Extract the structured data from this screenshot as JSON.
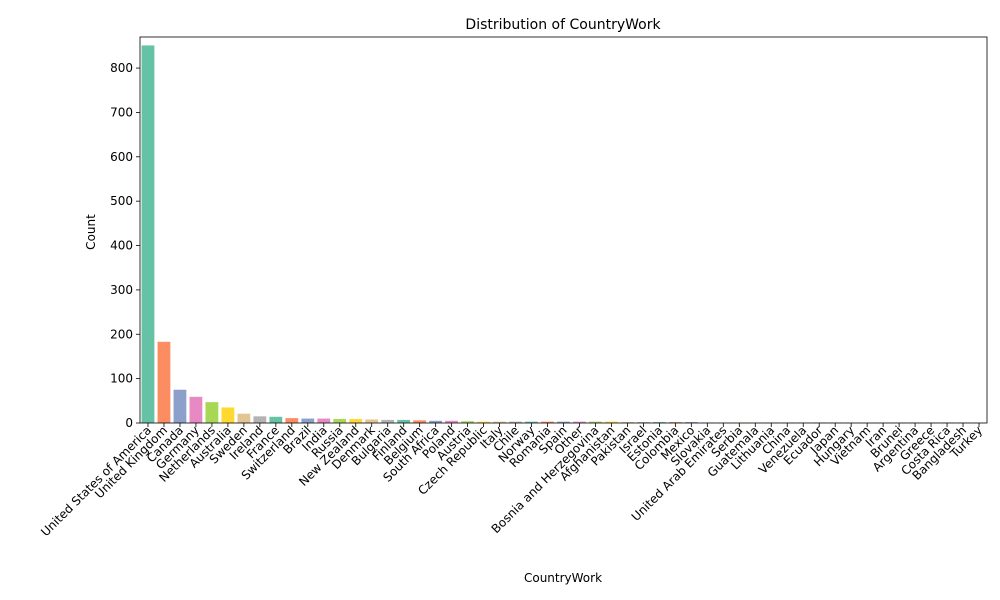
{
  "chart_data": {
    "type": "bar",
    "title": "Distribution of CountryWork",
    "xlabel": "CountryWork",
    "ylabel": "Count",
    "ylim": [
      0,
      870
    ],
    "yticks": [
      0,
      100,
      200,
      300,
      400,
      500,
      600,
      700,
      800
    ],
    "grid": false,
    "legend": "none",
    "palette": [
      "#66c2a5",
      "#fc8d62",
      "#8da0cb",
      "#e78ac3",
      "#a6d854",
      "#ffd92f",
      "#e5c494",
      "#b3b3b3"
    ],
    "categories": [
      "United States of America",
      "United Kingdom",
      "Canada",
      "Germany",
      "Netherlands",
      "Australia",
      "Sweden",
      "Ireland",
      "France",
      "Switzerland",
      "Brazil",
      "India",
      "Russia",
      "New Zealand",
      "Denmark",
      "Bulgaria",
      "Finland",
      "Belgium",
      "South Africa",
      "Poland",
      "Austria",
      "Czech Republic",
      "Italy",
      "Chile",
      "Norway",
      "Romania",
      "Spain",
      "Other",
      "Bosnia and Herzegovina",
      "Afghanistan",
      "Pakistan",
      "Israel",
      "Estonia",
      "Colombia",
      "Mexico",
      "Slovakia",
      "United Arab Emirates",
      "Serbia",
      "Guatemala",
      "Lithuania",
      "China",
      "Venezuela",
      "Ecuador",
      "Japan",
      "Hungary",
      "Vietnam",
      "Iran",
      "Brunei",
      "Argentina",
      "Greece",
      "Costa Rica",
      "Bangladesh",
      "Turkey"
    ],
    "values": [
      851,
      183,
      75,
      59,
      47,
      35,
      21,
      15,
      14,
      11,
      10,
      10,
      9,
      9,
      8,
      7,
      7,
      6,
      5,
      5,
      4,
      3,
      3,
      3,
      3,
      3,
      3,
      3,
      3,
      3,
      2,
      2,
      2,
      2,
      2,
      1,
      1,
      1,
      1,
      1,
      1,
      1,
      1,
      1,
      1,
      1,
      1,
      1,
      1,
      1,
      1,
      1,
      1
    ]
  }
}
